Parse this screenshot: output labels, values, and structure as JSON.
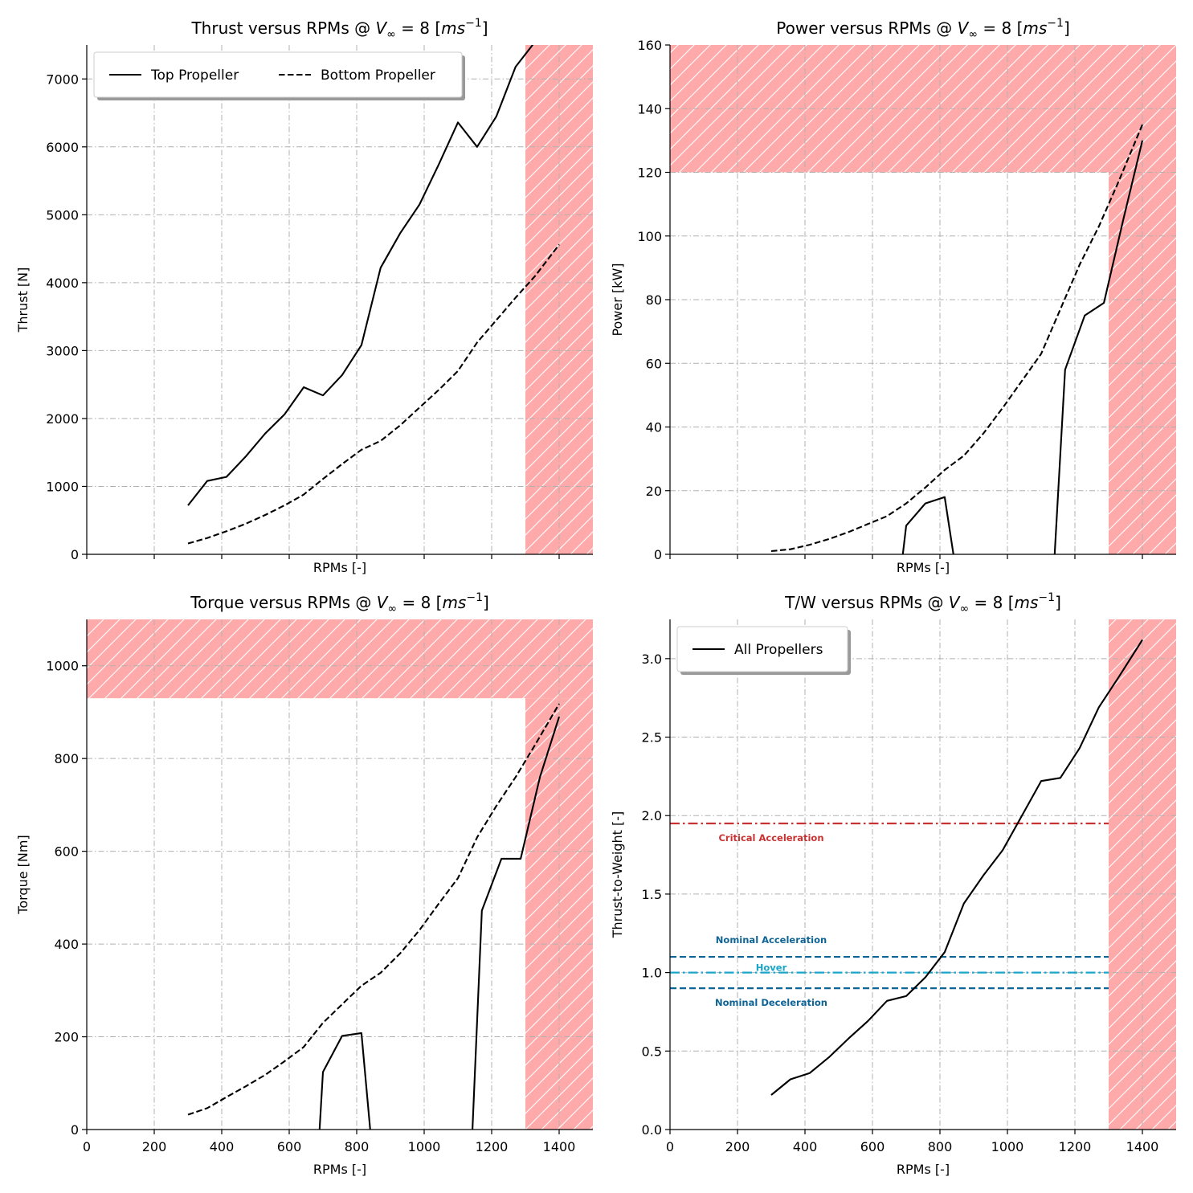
{
  "chart_data": [
    {
      "type": "line",
      "title": "Thrust versus RPMs @ V∞ = 8 [ms⁻¹]",
      "xlabel": "RPMs [-]",
      "ylabel": "Thrust [N]",
      "xlim": [
        0,
        1500
      ],
      "ylim": [
        0,
        7500
      ],
      "yticks": [
        0,
        1000,
        2000,
        3000,
        4000,
        5000,
        6000,
        7000
      ],
      "xticks": [
        0,
        200,
        400,
        600,
        800,
        1000,
        1200,
        1400
      ],
      "show_xtick_labels": false,
      "grid": true,
      "legend": {
        "placement": "upper-left",
        "columns": 2
      },
      "restricted_regions": [
        {
          "x": [
            1300,
            1500
          ],
          "y": [
            0,
            7500
          ]
        }
      ],
      "series": [
        {
          "name": "Top Propeller",
          "style": "solid",
          "x": [
            300,
            357,
            414,
            471,
            529,
            586,
            643,
            700,
            757,
            814,
            871,
            929,
            986,
            1043,
            1100,
            1157,
            1214,
            1271,
            1329,
            1386
          ],
          "y": [
            720,
            1080,
            1140,
            1440,
            1780,
            2060,
            2460,
            2340,
            2640,
            3080,
            4220,
            4730,
            5150,
            5740,
            6360,
            6000,
            6450,
            7180,
            7550,
            7850
          ]
        },
        {
          "name": "Bottom Propeller",
          "style": "dashed",
          "x": [
            300,
            357,
            414,
            471,
            529,
            586,
            643,
            700,
            757,
            814,
            871,
            929,
            986,
            1043,
            1100,
            1157,
            1214,
            1271,
            1329,
            1400
          ],
          "y": [
            160,
            240,
            340,
            450,
            580,
            720,
            880,
            1110,
            1330,
            1540,
            1670,
            1900,
            2160,
            2420,
            2700,
            3120,
            3450,
            3780,
            4100,
            4560
          ]
        }
      ]
    },
    {
      "type": "line",
      "title": "Power versus RPMs @ V∞ = 8 [ms⁻¹]",
      "xlabel": "RPMs [-]",
      "ylabel": "Power [kW]",
      "xlim": [
        0,
        1500
      ],
      "ylim": [
        0,
        160
      ],
      "yticks": [
        0,
        20,
        40,
        60,
        80,
        100,
        120,
        140,
        160
      ],
      "xticks": [
        0,
        200,
        400,
        600,
        800,
        1000,
        1200,
        1400
      ],
      "show_xtick_labels": false,
      "grid": true,
      "restricted_regions": [
        {
          "x": [
            0,
            1500
          ],
          "y": [
            120,
            160
          ]
        },
        {
          "x": [
            1300,
            1500
          ],
          "y": [
            0,
            120
          ]
        }
      ],
      "series": [
        {
          "name": "Top Propeller",
          "style": "solid",
          "x": [
            690,
            700,
            757,
            814,
            840
          ],
          "y": [
            0,
            9,
            16,
            18,
            0
          ]
        },
        {
          "name": "Top Propeller",
          "style": "solid",
          "x": [
            1140,
            1171,
            1229,
            1286,
            1343,
            1400
          ],
          "y": [
            0,
            58,
            75,
            79,
            105,
            130
          ]
        },
        {
          "name": "Bottom Propeller",
          "style": "dashed",
          "x": [
            300,
            357,
            414,
            471,
            529,
            586,
            643,
            700,
            757,
            814,
            871,
            929,
            986,
            1043,
            1100,
            1157,
            1214,
            1271,
            1329,
            1400
          ],
          "y": [
            1,
            1.6,
            3,
            4.8,
            7,
            9.5,
            12,
            16,
            21,
            26.5,
            31,
            38,
            46,
            54.5,
            63,
            77,
            91,
            103,
            117,
            135
          ]
        }
      ]
    },
    {
      "type": "line",
      "title": "Torque versus RPMs @ V∞ = 8 [ms⁻¹]",
      "xlabel": "RPMs [-]",
      "ylabel": "Torque [Nm]",
      "xlim": [
        0,
        1500
      ],
      "ylim": [
        0,
        1100
      ],
      "yticks": [
        0,
        200,
        400,
        600,
        800,
        1000
      ],
      "xticks": [
        0,
        200,
        400,
        600,
        800,
        1000,
        1200,
        1400
      ],
      "show_xtick_labels": true,
      "grid": true,
      "restricted_regions": [
        {
          "x": [
            0,
            1500
          ],
          "y": [
            930,
            1100
          ]
        },
        {
          "x": [
            1300,
            1500
          ],
          "y": [
            0,
            930
          ]
        }
      ],
      "series": [
        {
          "name": "Top Propeller",
          "style": "solid",
          "x": [
            690,
            700,
            757,
            814,
            840
          ],
          "y": [
            0,
            124,
            202,
            208,
            0
          ]
        },
        {
          "name": "Top Propeller",
          "style": "solid",
          "x": [
            1143,
            1171,
            1229,
            1286,
            1343,
            1400
          ],
          "y": [
            0,
            472,
            584,
            584,
            760,
            890
          ]
        },
        {
          "name": "Bottom Propeller",
          "style": "dashed",
          "x": [
            300,
            357,
            414,
            471,
            529,
            586,
            643,
            700,
            757,
            814,
            871,
            929,
            986,
            1043,
            1100,
            1157,
            1214,
            1271,
            1329,
            1400
          ],
          "y": [
            32,
            46,
            70,
            93,
            118,
            147,
            178,
            230,
            270,
            310,
            338,
            380,
            430,
            487,
            542,
            630,
            698,
            760,
            830,
            918
          ]
        }
      ]
    },
    {
      "type": "line",
      "title": "T/W versus RPMs @ V∞ = 8 [ms⁻¹]",
      "xlabel": "RPMs [-]",
      "ylabel": "Thrust-to-Weight [-]",
      "xlim": [
        0,
        1500
      ],
      "ylim": [
        0,
        3.25
      ],
      "yticks": [
        0.0,
        0.5,
        1.0,
        1.5,
        2.0,
        2.5,
        3.0
      ],
      "xticks": [
        0,
        200,
        400,
        600,
        800,
        1000,
        1200,
        1400
      ],
      "show_xtick_labels": true,
      "grid": true,
      "legend": {
        "placement": "upper-left",
        "columns": 1
      },
      "restricted_regions": [
        {
          "x": [
            1300,
            1500
          ],
          "y": [
            0,
            3.25
          ]
        }
      ],
      "series": [
        {
          "name": "All Propellers",
          "style": "solid",
          "x": [
            300,
            357,
            414,
            471,
            529,
            586,
            643,
            700,
            757,
            814,
            871,
            929,
            986,
            1043,
            1100,
            1157,
            1214,
            1271,
            1329,
            1400
          ],
          "y": [
            0.22,
            0.32,
            0.36,
            0.46,
            0.58,
            0.69,
            0.82,
            0.85,
            0.97,
            1.13,
            1.44,
            1.62,
            1.78,
            2.0,
            2.22,
            2.24,
            2.43,
            2.69,
            2.88,
            3.12
          ]
        }
      ],
      "reference_lines": [
        {
          "label": "Critical Acceleration",
          "y": 1.95,
          "color": "#c83232",
          "style": "dashdot",
          "x": [
            0,
            1300
          ]
        },
        {
          "label": "Nominal Acceleration",
          "y": 1.1,
          "color": "#0f6496",
          "style": "dashed",
          "x": [
            0,
            1300
          ]
        },
        {
          "label": "Hover",
          "y": 1.0,
          "color": "#1aa6c8",
          "style": "dashdot",
          "x": [
            0,
            1300
          ]
        },
        {
          "label": "Nominal Deceleration",
          "y": 0.9,
          "color": "#0f6496",
          "style": "dashed",
          "x": [
            0,
            1300
          ]
        }
      ]
    }
  ],
  "colors": {
    "restricted_fill": "#ffaaaa",
    "restricted_hatch": "#ffffff",
    "grid": "#b0b0b0",
    "line": "#000000"
  }
}
